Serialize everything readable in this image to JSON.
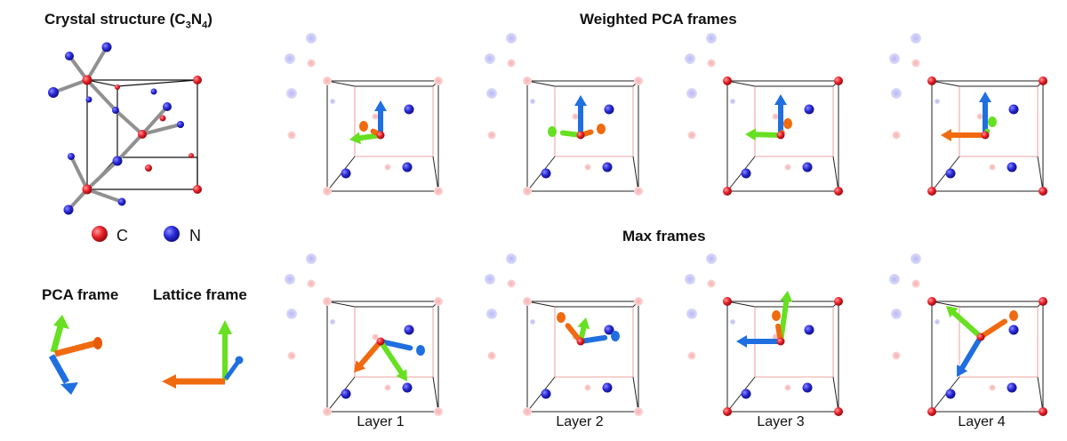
{
  "titles": {
    "crystal_prefix": "Crystal structure (C",
    "crystal_sub1": "3",
    "crystal_mid": "N",
    "crystal_sub2": "4",
    "crystal_suffix": ")",
    "weighted": "Weighted PCA frames",
    "max": "Max frames",
    "pca_frame": "PCA frame",
    "lattice_frame": "Lattice frame"
  },
  "legend": {
    "c": "C",
    "n": "N"
  },
  "layers": [
    "Layer 1",
    "Layer 2",
    "Layer 3",
    "Layer 4"
  ],
  "colors": {
    "carbon": "#e8202a",
    "nitrogen": "#2a2ad8",
    "arrow_blue": "#1f6fe0",
    "arrow_green": "#66e020",
    "arrow_orange": "#f06a10",
    "bond": "#909090"
  }
}
